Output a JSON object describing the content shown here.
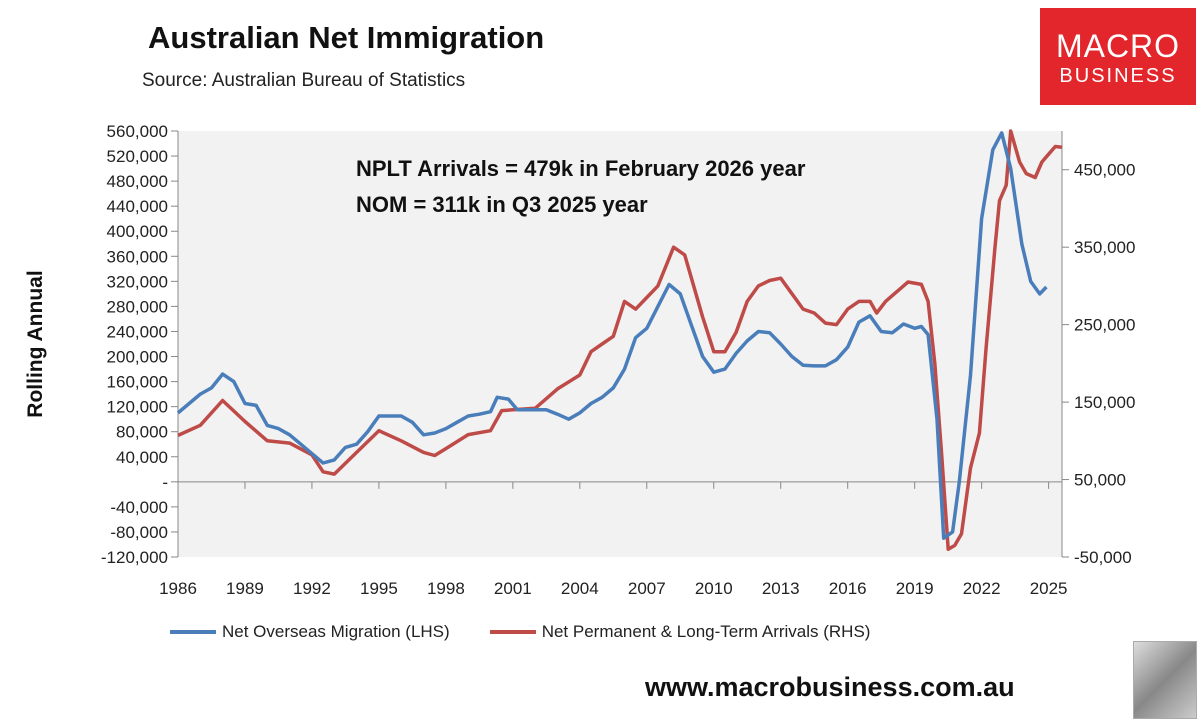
{
  "title": "Australian Net Immigration",
  "source": "Source: Australian Bureau of Statistics",
  "logo": {
    "line1": "MACRO",
    "line2": "BUSINESS",
    "color": "#e3262b"
  },
  "footer_url": "www.macrobusiness.com.au",
  "chart_data": {
    "type": "line",
    "ylabel": "Rolling Annual",
    "grid": false,
    "legend_placement": "bottom",
    "plot_background": "#f2f2f2",
    "annotations": [
      "NPLT Arrivals = 479k in February 2026 year",
      "NOM = 311k in Q3 2025 year"
    ],
    "x_ticks": [
      "1986",
      "1989",
      "1992",
      "1995",
      "1998",
      "2001",
      "2004",
      "2007",
      "2010",
      "2013",
      "2016",
      "2019",
      "2022",
      "2025"
    ],
    "xlim": [
      1986,
      2025.6
    ],
    "y_left": {
      "lim": [
        -120000,
        560000
      ],
      "ticks": [
        -120000,
        -80000,
        -40000,
        0,
        40000,
        80000,
        120000,
        160000,
        200000,
        240000,
        280000,
        320000,
        360000,
        400000,
        440000,
        480000,
        520000,
        560000
      ],
      "tick_labels": [
        "-120,000",
        "-80,000",
        "-40,000",
        "-",
        "40,000",
        "80,000",
        "120,000",
        "160,000",
        "200,000",
        "240,000",
        "280,000",
        "320,000",
        "360,000",
        "400,000",
        "440,000",
        "480,000",
        "520,000",
        "560,000"
      ]
    },
    "y_right": {
      "lim": [
        -50000,
        500000
      ],
      "ticks": [
        -50000,
        50000,
        150000,
        250000,
        350000,
        450000
      ],
      "tick_labels": [
        "-50,000",
        "50,000",
        "150,000",
        "250,000",
        "350,000",
        "450,000"
      ]
    },
    "series": [
      {
        "name": "Net Overseas Migration (LHS)",
        "axis": "left",
        "color": "#4a7ebb",
        "x": [
          1986,
          1987,
          1987.5,
          1988,
          1988.5,
          1989,
          1989.5,
          1990,
          1990.5,
          1991,
          1991.5,
          1992,
          1992.5,
          1993,
          1993.5,
          1994,
          1994.5,
          1995,
          1995.5,
          1996,
          1996.5,
          1997,
          1997.5,
          1998,
          1998.5,
          1999,
          1999.5,
          2000,
          2000.3,
          2000.8,
          2001.2,
          2001.8,
          2002.5,
          2003,
          2003.5,
          2004,
          2004.5,
          2005,
          2005.5,
          2006,
          2006.5,
          2007,
          2007.5,
          2008,
          2008.5,
          2009,
          2009.5,
          2010,
          2010.5,
          2011,
          2011.5,
          2012,
          2012.5,
          2013,
          2013.5,
          2014,
          2014.5,
          2015,
          2015.5,
          2016,
          2016.5,
          2017,
          2017.5,
          2018,
          2018.5,
          2019,
          2019.3,
          2019.6,
          2020,
          2020.3,
          2020.7,
          2021,
          2021.5,
          2022,
          2022.5,
          2022.9,
          2023.3,
          2023.8,
          2024.2,
          2024.6,
          2024.9
        ],
        "y": [
          110000,
          140000,
          150000,
          172000,
          160000,
          125000,
          122000,
          90000,
          85000,
          75000,
          60000,
          45000,
          30000,
          35000,
          55000,
          60000,
          80000,
          105000,
          105000,
          105000,
          95000,
          75000,
          78000,
          85000,
          95000,
          105000,
          108000,
          112000,
          135000,
          132000,
          115000,
          115000,
          115000,
          108000,
          100000,
          110000,
          125000,
          135000,
          150000,
          180000,
          230000,
          245000,
          280000,
          315000,
          300000,
          250000,
          200000,
          175000,
          180000,
          205000,
          225000,
          240000,
          238000,
          220000,
          200000,
          186000,
          185000,
          185000,
          195000,
          215000,
          255000,
          265000,
          240000,
          238000,
          252000,
          245000,
          248000,
          235000,
          100000,
          -90000,
          -80000,
          0,
          170000,
          420000,
          530000,
          557000,
          500000,
          380000,
          320000,
          300000,
          311000
        ]
      },
      {
        "name": "Net Permanent & Long-Term Arrivals (RHS)",
        "axis": "right",
        "color": "#be4b48",
        "x": [
          1986,
          1987,
          1988,
          1989,
          1990,
          1991,
          1992,
          1992.5,
          1993,
          1994,
          1995,
          1996,
          1997,
          1997.5,
          1998,
          1999,
          2000,
          2000.5,
          2001,
          2002,
          2003,
          2004,
          2004.5,
          2005,
          2005.5,
          2006,
          2006.5,
          2007,
          2007.5,
          2008.2,
          2008.7,
          2009.5,
          2010,
          2010.5,
          2011,
          2011.5,
          2012,
          2012.5,
          2013,
          2013.5,
          2014,
          2014.5,
          2015,
          2015.5,
          2016,
          2016.5,
          2017,
          2017.3,
          2017.7,
          2018.3,
          2018.7,
          2019.3,
          2019.6,
          2019.9,
          2020.2,
          2020.5,
          2020.8,
          2021.1,
          2021.5,
          2021.9,
          2022.2,
          2022.6,
          2022.8,
          2023.1,
          2023.3,
          2023.7,
          2024,
          2024.4,
          2024.7,
          2025,
          2025.3,
          2025.6
        ],
        "y": [
          107000,
          120000,
          152000,
          125000,
          100000,
          97000,
          82000,
          60000,
          57000,
          85000,
          113000,
          100000,
          85000,
          81000,
          90000,
          108000,
          113000,
          139000,
          140000,
          142000,
          167000,
          185000,
          215000,
          225000,
          235000,
          280000,
          270000,
          285000,
          300000,
          350000,
          340000,
          260000,
          215000,
          215000,
          240000,
          280000,
          300000,
          307000,
          310000,
          290000,
          270000,
          265000,
          252000,
          250000,
          270000,
          280000,
          280000,
          265000,
          280000,
          295000,
          305000,
          302000,
          280000,
          200000,
          85000,
          -40000,
          -35000,
          -20000,
          65000,
          110000,
          220000,
          350000,
          410000,
          430000,
          500000,
          460000,
          445000,
          440000,
          460000,
          470000,
          480000,
          479000
        ]
      }
    ]
  }
}
